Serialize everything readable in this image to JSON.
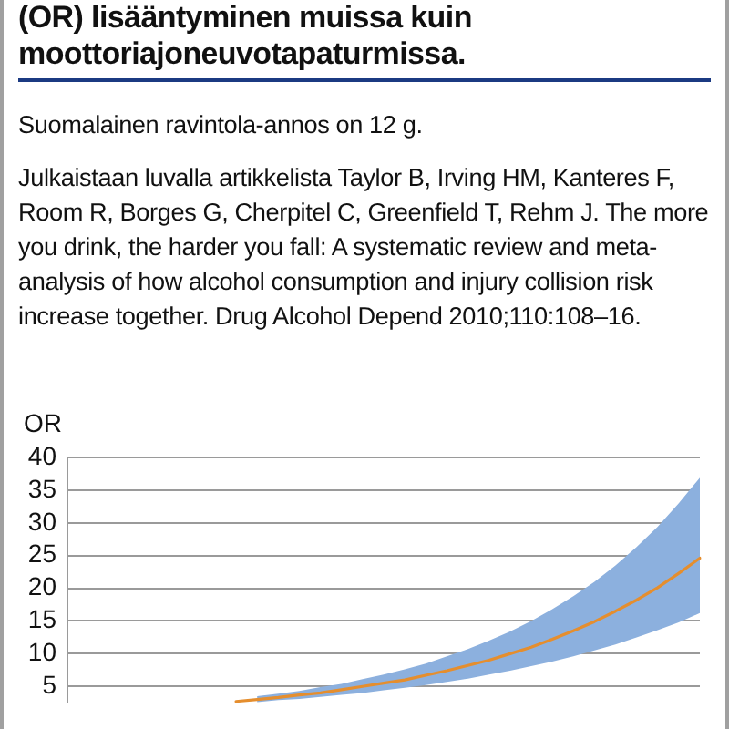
{
  "chart_data": {
    "type": "line",
    "title": "(OR) lisääntyminen muissa kuin moottoriajoneuvotapaturmissa.",
    "annotations": [
      "Suomalainen ravintola-annos on 12 g.",
      "Julkaistaan luvalla artikkelista Taylor B, Irving HM, Kanteres F, Room R, Borges G, Cherpitel C, Greenfield T, Rehm J. The more you drink, the harder you fall: A systematic review and meta-analysis of how alcohol consumption and injury collision risk increase together. Drug Alcohol Depend 2010;110:108–16."
    ],
    "ylabel": "OR",
    "categories": [
      null,
      null,
      null,
      null,
      null,
      null,
      null,
      null,
      null,
      null,
      null,
      null,
      null,
      null,
      null,
      null,
      null,
      null,
      null,
      null,
      null,
      null,
      null,
      null,
      null,
      null,
      null,
      null,
      null,
      null,
      null
    ],
    "series": [
      {
        "color": "#e58e2e",
        "values": [
          null,
          null,
          null,
          null,
          null,
          null,
          null,
          null,
          2.7,
          3.0,
          3.3,
          3.7,
          4.0,
          4.5,
          5.0,
          5.5,
          6.0,
          6.7,
          7.4,
          8.2,
          9.0,
          10.0,
          11.0,
          12.2,
          13.5,
          14.9,
          16.5,
          18.2,
          20.1,
          22.3,
          24.6
        ],
        "upper": [
          null,
          null,
          null,
          null,
          null,
          null,
          null,
          null,
          null,
          3.5,
          3.9,
          4.3,
          4.9,
          5.4,
          6.1,
          6.8,
          7.6,
          8.5,
          9.6,
          10.7,
          12.0,
          13.4,
          15.0,
          16.8,
          18.8,
          21.0,
          23.5,
          26.3,
          29.4,
          33.0,
          36.9
        ],
        "lower": [
          null,
          null,
          null,
          null,
          null,
          null,
          null,
          null,
          null,
          2.6,
          2.9,
          3.1,
          3.4,
          3.7,
          4.0,
          4.4,
          4.8,
          5.2,
          5.7,
          6.2,
          6.8,
          7.4,
          8.1,
          8.8,
          9.6,
          10.5,
          11.4,
          12.5,
          13.6,
          14.8,
          16.2
        ]
      }
    ],
    "ylim": [
      2.5,
      40
    ],
    "yticks": [
      5,
      10,
      15,
      20,
      25,
      30,
      35,
      40
    ],
    "grid": "y",
    "marker": "none",
    "tick_labels": "y"
  }
}
